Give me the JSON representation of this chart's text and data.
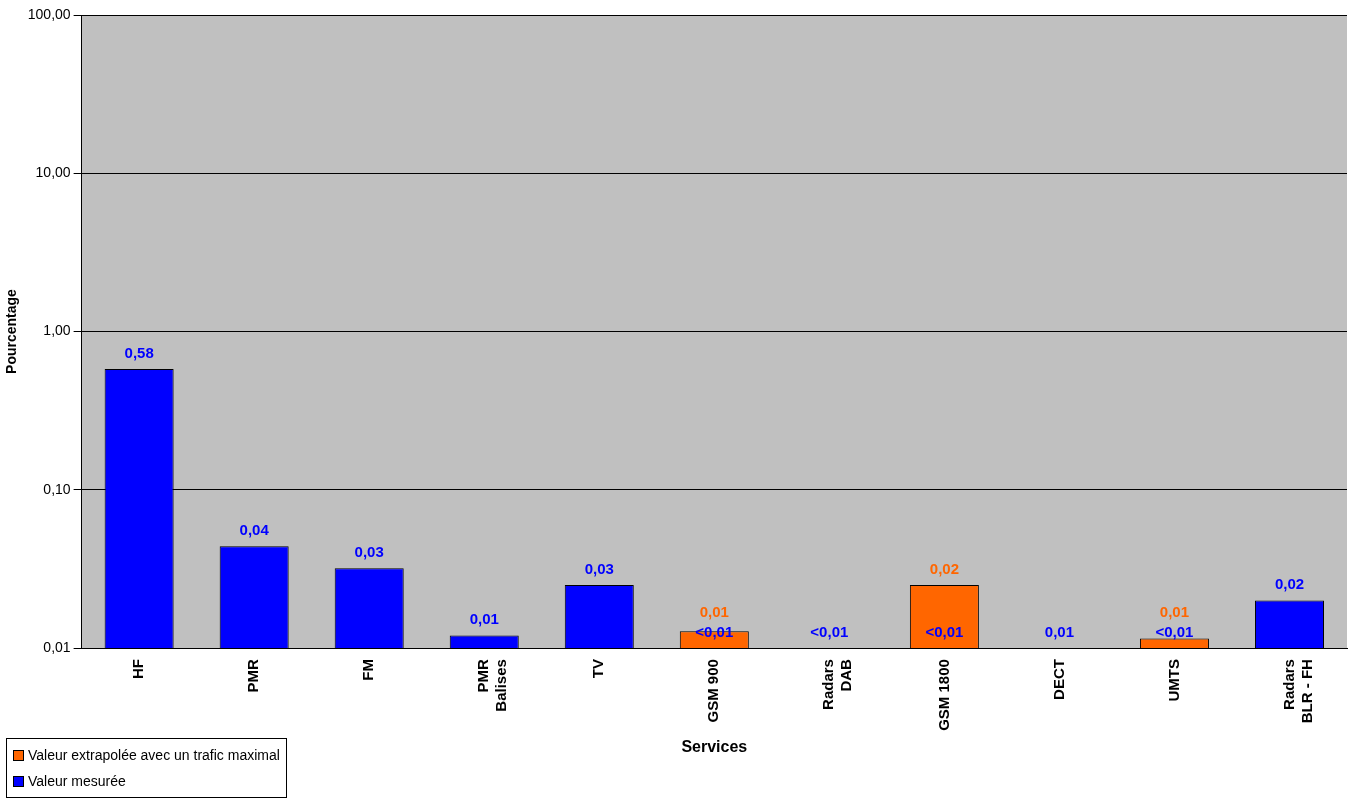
{
  "chart_data": {
    "type": "bar",
    "xlabel": "Services",
    "ylabel": "Pourcentage",
    "categories": [
      "HF",
      "PMR",
      "FM",
      "PMR\nBalises",
      "TV",
      "GSM 900",
      "Radars\nDAB",
      "GSM 1800",
      "DECT",
      "UMTS",
      "Radars\nBLR - FH"
    ],
    "series": [
      {
        "name": "Valeur extrapolée avec un trafic maximal",
        "color": "#ff6600",
        "values": [
          null,
          null,
          null,
          null,
          null,
          0.0128,
          null,
          0.025,
          null,
          0.0115,
          null
        ],
        "value_labels": [
          null,
          null,
          null,
          null,
          null,
          "0,01",
          null,
          "0,02",
          null,
          "0,01",
          null
        ]
      },
      {
        "name": "Valeur mesurée",
        "color": "#0000ff",
        "values": [
          0.58,
          0.044,
          0.032,
          0.012,
          0.025,
          null,
          null,
          null,
          0.01,
          null,
          0.02
        ],
        "value_labels": [
          "0,58",
          "0,04",
          "0,03",
          "0,01",
          "0,03",
          "<0,01",
          "<0,01",
          "<0,01",
          "0,01",
          "<0,01",
          "0,02"
        ]
      }
    ],
    "log": true,
    "ylim": [
      0.01,
      100
    ],
    "yticks": [
      {
        "value": 0.01,
        "label": "0,01"
      },
      {
        "value": 0.1,
        "label": "0,10"
      },
      {
        "value": 1,
        "label": "1,00"
      },
      {
        "value": 10,
        "label": "10,00"
      },
      {
        "value": 100,
        "label": "100,00"
      }
    ],
    "grid": "y",
    "legend": "bottom left"
  }
}
